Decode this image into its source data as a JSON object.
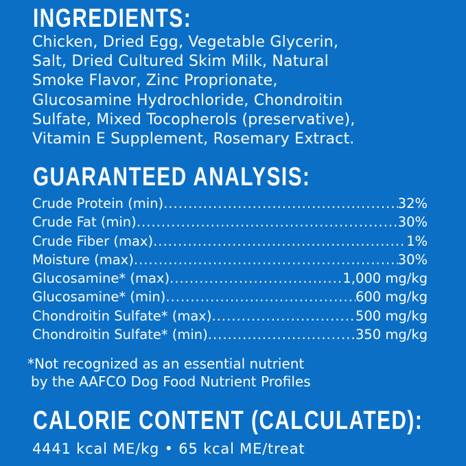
{
  "ingredients": {
    "heading": "INGREDIENTS:",
    "lines": [
      "Chicken, Dried Egg, Vegetable Glycerin,",
      "Salt, Dried Cultured Skim Milk, Natural",
      "Smoke Flavor, Zinc Proprionate,",
      "Glucosamine Hydrochloride, Chondroitin",
      "Sulfate, Mixed Tocopherols (preservative),",
      "Vitamin E Supplement, Rosemary Extract."
    ]
  },
  "analysis": {
    "heading": "GUARANTEED ANALYSIS:",
    "rows": [
      {
        "label": "Crude Protein (min)",
        "value": "32%"
      },
      {
        "label": "Crude Fat (min)",
        "value": "30%"
      },
      {
        "label": "Crude Fiber (max)",
        "value": "1%"
      },
      {
        "label": "Moisture (max)",
        "value": "30%"
      },
      {
        "label": "Glucosamine* (max)",
        "value": "1,000 mg/kg"
      },
      {
        "label": "Glucosamine* (min)",
        "value": "600 mg/kg"
      },
      {
        "label": "Chondroitin Sulfate* (max)",
        "value": "500 mg/kg"
      },
      {
        "label": "Chondroitin Sulfate* (min)",
        "value": "350 mg/kg"
      }
    ],
    "footnote": [
      "*Not recognized as an essential nutrient",
      "by the AAFCO Dog Food Nutrient Profiles"
    ]
  },
  "calorie": {
    "heading": "CALORIE CONTENT (CALCULATED):",
    "text": "4441 kcal ME/kg • 65 kcal ME/treat"
  },
  "colors": {
    "background": "#0b6fc6",
    "text": "#ffffff"
  }
}
